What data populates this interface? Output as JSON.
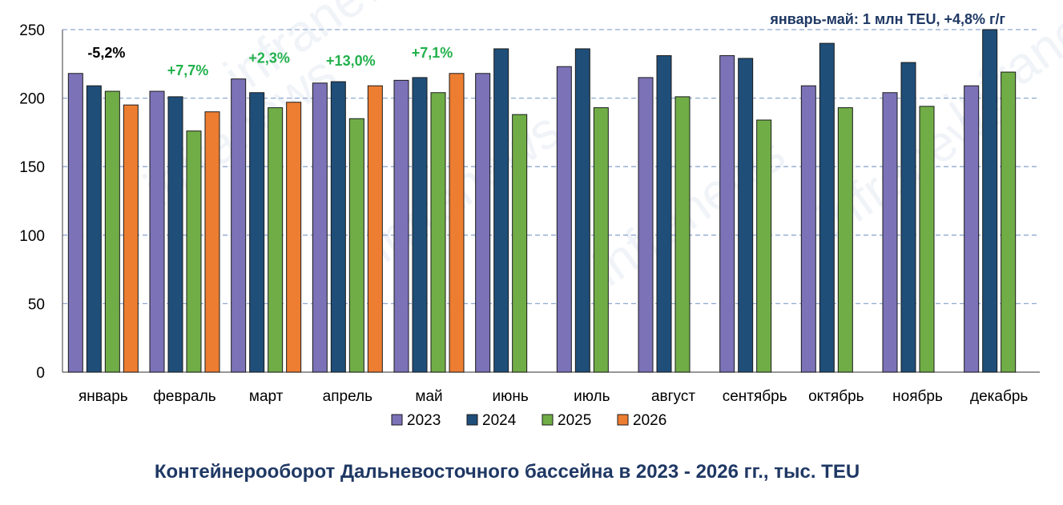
{
  "chart_data": {
    "type": "bar",
    "title": "Контейнерооборот Дальневосточного  бассейна в 2023 - 2026 гг., тыс. TEU",
    "summary_note": "январь-май: 1 млн TEU, +4,8% г/г",
    "xlabel": "",
    "ylabel": "",
    "ylim": [
      0,
      250
    ],
    "yticks": [
      "0",
      "50",
      "100",
      "150",
      "200",
      "250"
    ],
    "grid": true,
    "legend_position": "bottom",
    "categories": [
      "январь",
      "февраль",
      "март",
      "апрель",
      "май",
      "июнь",
      "июль",
      "август",
      "сентябрь",
      "октябрь",
      "ноябрь",
      "декабрь"
    ],
    "series": [
      {
        "name": "2023",
        "color": "#7b72b8",
        "values": [
          218,
          205,
          214,
          211,
          213,
          218,
          223,
          215,
          231,
          209,
          204,
          209
        ]
      },
      {
        "name": "2024",
        "color": "#1f4e79",
        "values": [
          209,
          201,
          204,
          212,
          215,
          236,
          236,
          231,
          229,
          240,
          226,
          250
        ]
      },
      {
        "name": "2025",
        "color": "#70ad47",
        "values": [
          205,
          176,
          193,
          185,
          204,
          188,
          193,
          201,
          184,
          193,
          194,
          219
        ]
      },
      {
        "name": "2026",
        "color": "#ed7d31",
        "values": [
          195,
          190,
          197,
          209,
          218,
          null,
          null,
          null,
          null,
          null,
          null,
          null
        ]
      }
    ],
    "annotations": [
      {
        "category": "январь",
        "text": "-5,2%",
        "color": "#000000"
      },
      {
        "category": "февраль",
        "text": "+7,7%",
        "color": "#22b14c"
      },
      {
        "category": "март",
        "text": "+2,3%",
        "color": "#22b14c"
      },
      {
        "category": "апрель",
        "text": "+13,0%",
        "color": "#22b14c"
      },
      {
        "category": "май",
        "text": "+7,1%",
        "color": "#22b14c"
      }
    ],
    "watermark": "infranews"
  }
}
